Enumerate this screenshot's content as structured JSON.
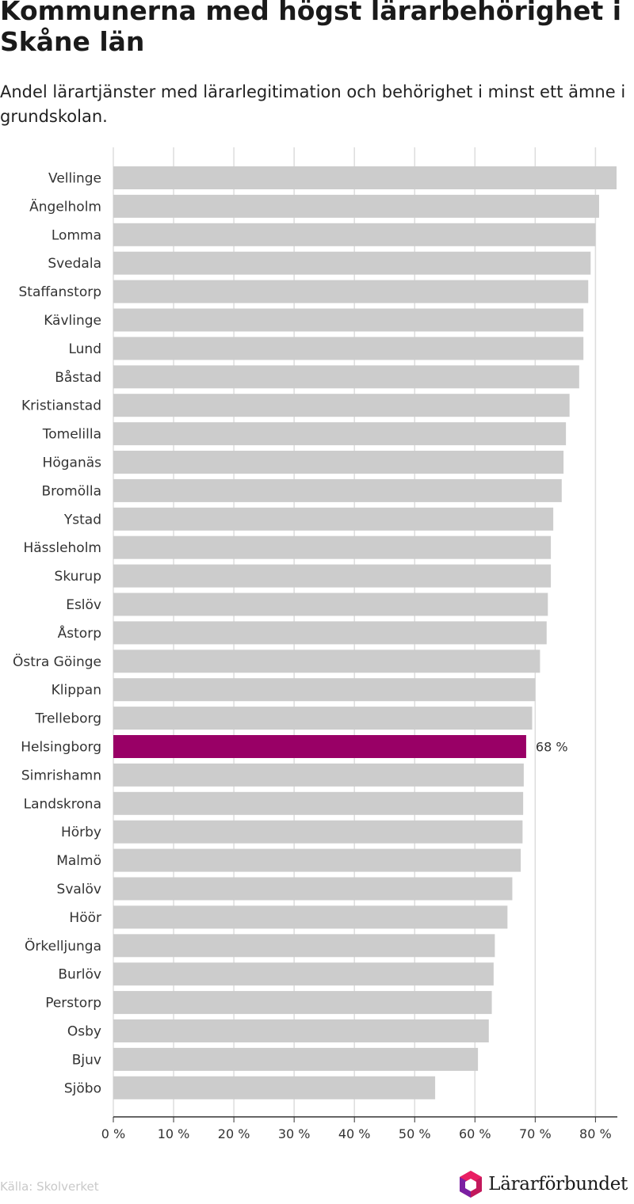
{
  "title": "Kommunerna med högst lärarbehörighet i Skåne län",
  "subtitle": "Andel lärartjänster med lärarlegitimation och behörighet i minst ett ämne i grundskolan.",
  "source": "Källa: Skolverket",
  "brand": {
    "name": "Lärarförbundet",
    "logo_icon": "cube-logo-icon"
  },
  "colors": {
    "bar": "#cccccc",
    "highlight": "#990066",
    "grid": "#dddddd",
    "axis": "#333333"
  },
  "chart_data": {
    "type": "bar",
    "orientation": "horizontal",
    "categories": [
      "Vellinge",
      "Ängelholm",
      "Lomma",
      "Svedala",
      "Staffanstorp",
      "Kävlinge",
      "Lund",
      "Båstad",
      "Kristianstad",
      "Tomelilla",
      "Höganäs",
      "Bromölla",
      "Ystad",
      "Hässleholm",
      "Skurup",
      "Eslöv",
      "Åstorp",
      "Östra Göinge",
      "Klippan",
      "Trelleborg",
      "Helsingborg",
      "Simrishamn",
      "Landskrona",
      "Hörby",
      "Malmö",
      "Svalöv",
      "Höör",
      "Örkelljunga",
      "Burlöv",
      "Perstorp",
      "Osby",
      "Bjuv",
      "Sjöbo"
    ],
    "values": [
      83.5,
      80.6,
      80.0,
      79.2,
      78.8,
      78.0,
      78.0,
      77.3,
      75.7,
      75.1,
      74.7,
      74.4,
      73.0,
      72.6,
      72.6,
      72.1,
      71.9,
      70.8,
      70.0,
      69.5,
      68.5,
      68.1,
      68.0,
      67.9,
      67.6,
      66.2,
      65.4,
      63.3,
      63.1,
      62.8,
      62.3,
      60.5,
      53.4
    ],
    "highlight": "Helsingborg",
    "highlight_label": "68 %",
    "xticks": [
      "0 %",
      "10 %",
      "20 %",
      "30 %",
      "40 %",
      "50 %",
      "60 %",
      "70 %",
      "80 %"
    ],
    "xlim": [
      0,
      83.5
    ],
    "grid": true
  }
}
